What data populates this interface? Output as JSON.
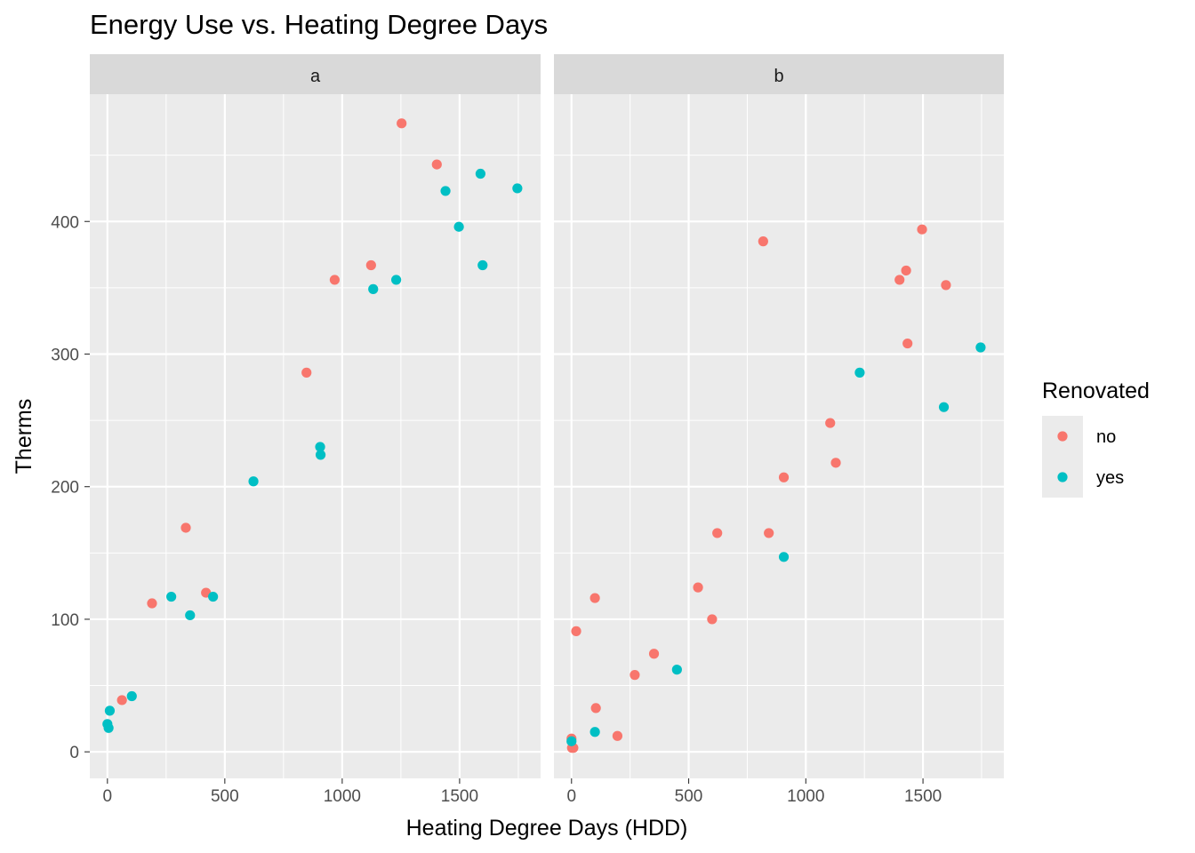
{
  "chart_data": {
    "type": "scatter",
    "title": "Energy Use vs. Heating Degree Days",
    "xlabel": "Heating Degree Days (HDD)",
    "ylabel": "Therms",
    "xlim": [
      -75,
      1845
    ],
    "ylim": [
      -20,
      496
    ],
    "x_ticks": [
      0,
      500,
      1000,
      1500
    ],
    "x_tick_labels": [
      "0",
      "500",
      "1000",
      "1500"
    ],
    "y_ticks": [
      0,
      100,
      200,
      300,
      400
    ],
    "y_tick_labels": [
      "0",
      "100",
      "200",
      "300",
      "400"
    ],
    "grid": true,
    "legend": {
      "title": "Renovated",
      "placement": "right",
      "entries": [
        {
          "label": "no",
          "color": "#F8766D"
        },
        {
          "label": "yes",
          "color": "#00BFC4"
        }
      ]
    },
    "facets": [
      {
        "label": "a",
        "series": [
          {
            "name": "no",
            "color": "#F8766D",
            "points": [
              [
                62,
                39
              ],
              [
                190,
                112
              ],
              [
                334,
                169
              ],
              [
                420,
                120
              ],
              [
                848,
                286
              ],
              [
                968,
                356
              ],
              [
                1123,
                367
              ],
              [
                1253,
                474
              ],
              [
                1403,
                443
              ]
            ]
          },
          {
            "name": "yes",
            "color": "#00BFC4",
            "points": [
              [
                0,
                21
              ],
              [
                5,
                18
              ],
              [
                10,
                31
              ],
              [
                104,
                42
              ],
              [
                272,
                117
              ],
              [
                352,
                103
              ],
              [
                450,
                117
              ],
              [
                622,
                204
              ],
              [
                906,
                230
              ],
              [
                908,
                224
              ],
              [
                1132,
                349
              ],
              [
                1230,
                356
              ],
              [
                1440,
                423
              ],
              [
                1497,
                396
              ],
              [
                1589,
                436
              ],
              [
                1598,
                367
              ],
              [
                1746,
                425
              ]
            ]
          }
        ]
      },
      {
        "label": "b",
        "series": [
          {
            "name": "no",
            "color": "#F8766D",
            "points": [
              [
                0,
                10
              ],
              [
                2,
                3
              ],
              [
                8,
                3
              ],
              [
                20,
                91
              ],
              [
                100,
                116
              ],
              [
                104,
                33
              ],
              [
                196,
                12
              ],
              [
                270,
                58
              ],
              [
                352,
                74
              ],
              [
                540,
                124
              ],
              [
                600,
                100
              ],
              [
                622,
                165
              ],
              [
                818,
                385
              ],
              [
                842,
                165
              ],
              [
                906,
                207
              ],
              [
                1104,
                248
              ],
              [
                1128,
                218
              ],
              [
                1400,
                356
              ],
              [
                1428,
                363
              ],
              [
                1434,
                308
              ],
              [
                1496,
                394
              ],
              [
                1598,
                352
              ]
            ]
          },
          {
            "name": "yes",
            "color": "#00BFC4",
            "points": [
              [
                0,
                8
              ],
              [
                100,
                15
              ],
              [
                450,
                62
              ],
              [
                906,
                147
              ],
              [
                1230,
                286
              ],
              [
                1589,
                260
              ],
              [
                1746,
                305
              ]
            ]
          }
        ]
      }
    ]
  }
}
